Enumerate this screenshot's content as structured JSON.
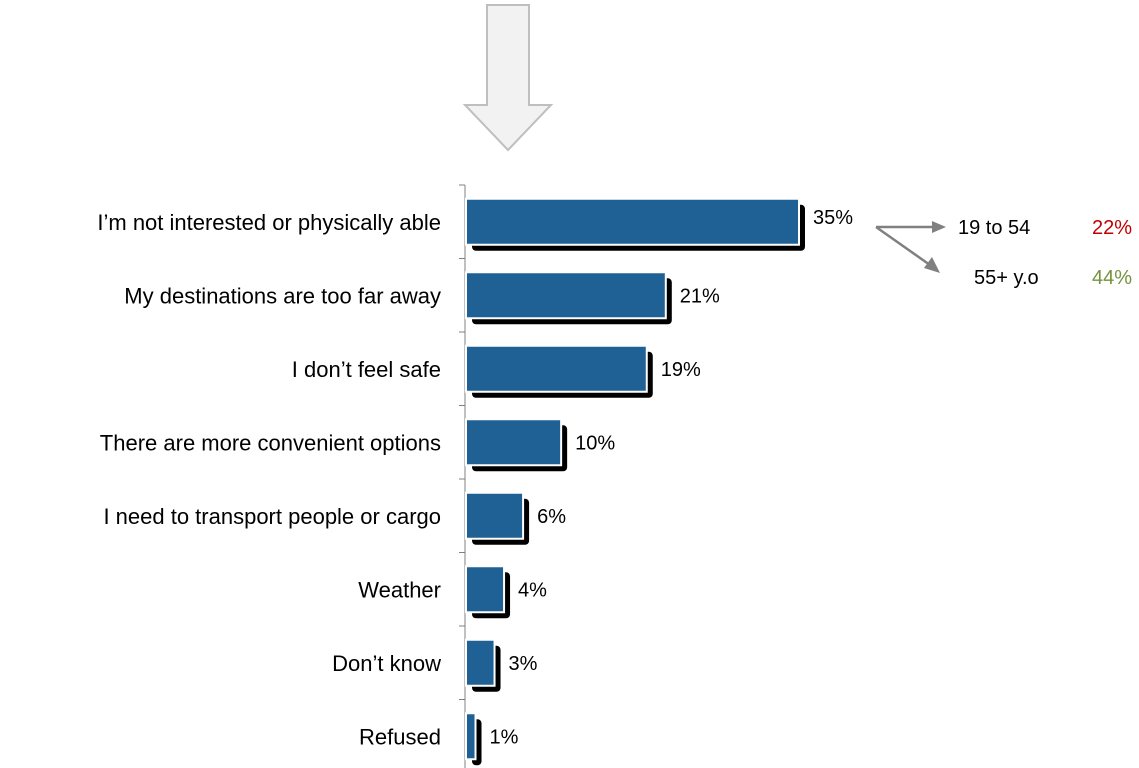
{
  "chart_data": {
    "type": "bar",
    "orientation": "horizontal",
    "categories": [
      "I’m not interested or physically able",
      "My destinations are too far away",
      "I don’t feel safe",
      "There are more convenient options",
      "I need to transport people or cargo",
      "Weather",
      "Don’t know",
      "Refused"
    ],
    "values": [
      35,
      21,
      19,
      10,
      6,
      4,
      3,
      1
    ],
    "value_labels": [
      "35%",
      "21%",
      "19%",
      "10%",
      "6%",
      "4%",
      "3%",
      "1%"
    ],
    "xlim": [
      0,
      37
    ],
    "grid": false,
    "bar_color": "#1f6195",
    "shadow_color": "#000000",
    "callout": {
      "from_category": "I’m not interested or physically able",
      "groups": [
        {
          "label": "19 to 54",
          "value_label": "22%",
          "color": "#c00000"
        },
        {
          "label": "55+ y.o",
          "value_label": "44%",
          "color": "#76923c"
        }
      ]
    }
  },
  "decoration": {
    "arrow_icon": "down-arrow-icon",
    "arrow_fill": "#f2f2f2",
    "arrow_stroke": "#bfbfbf",
    "callout_arrow_color": "#808080"
  }
}
